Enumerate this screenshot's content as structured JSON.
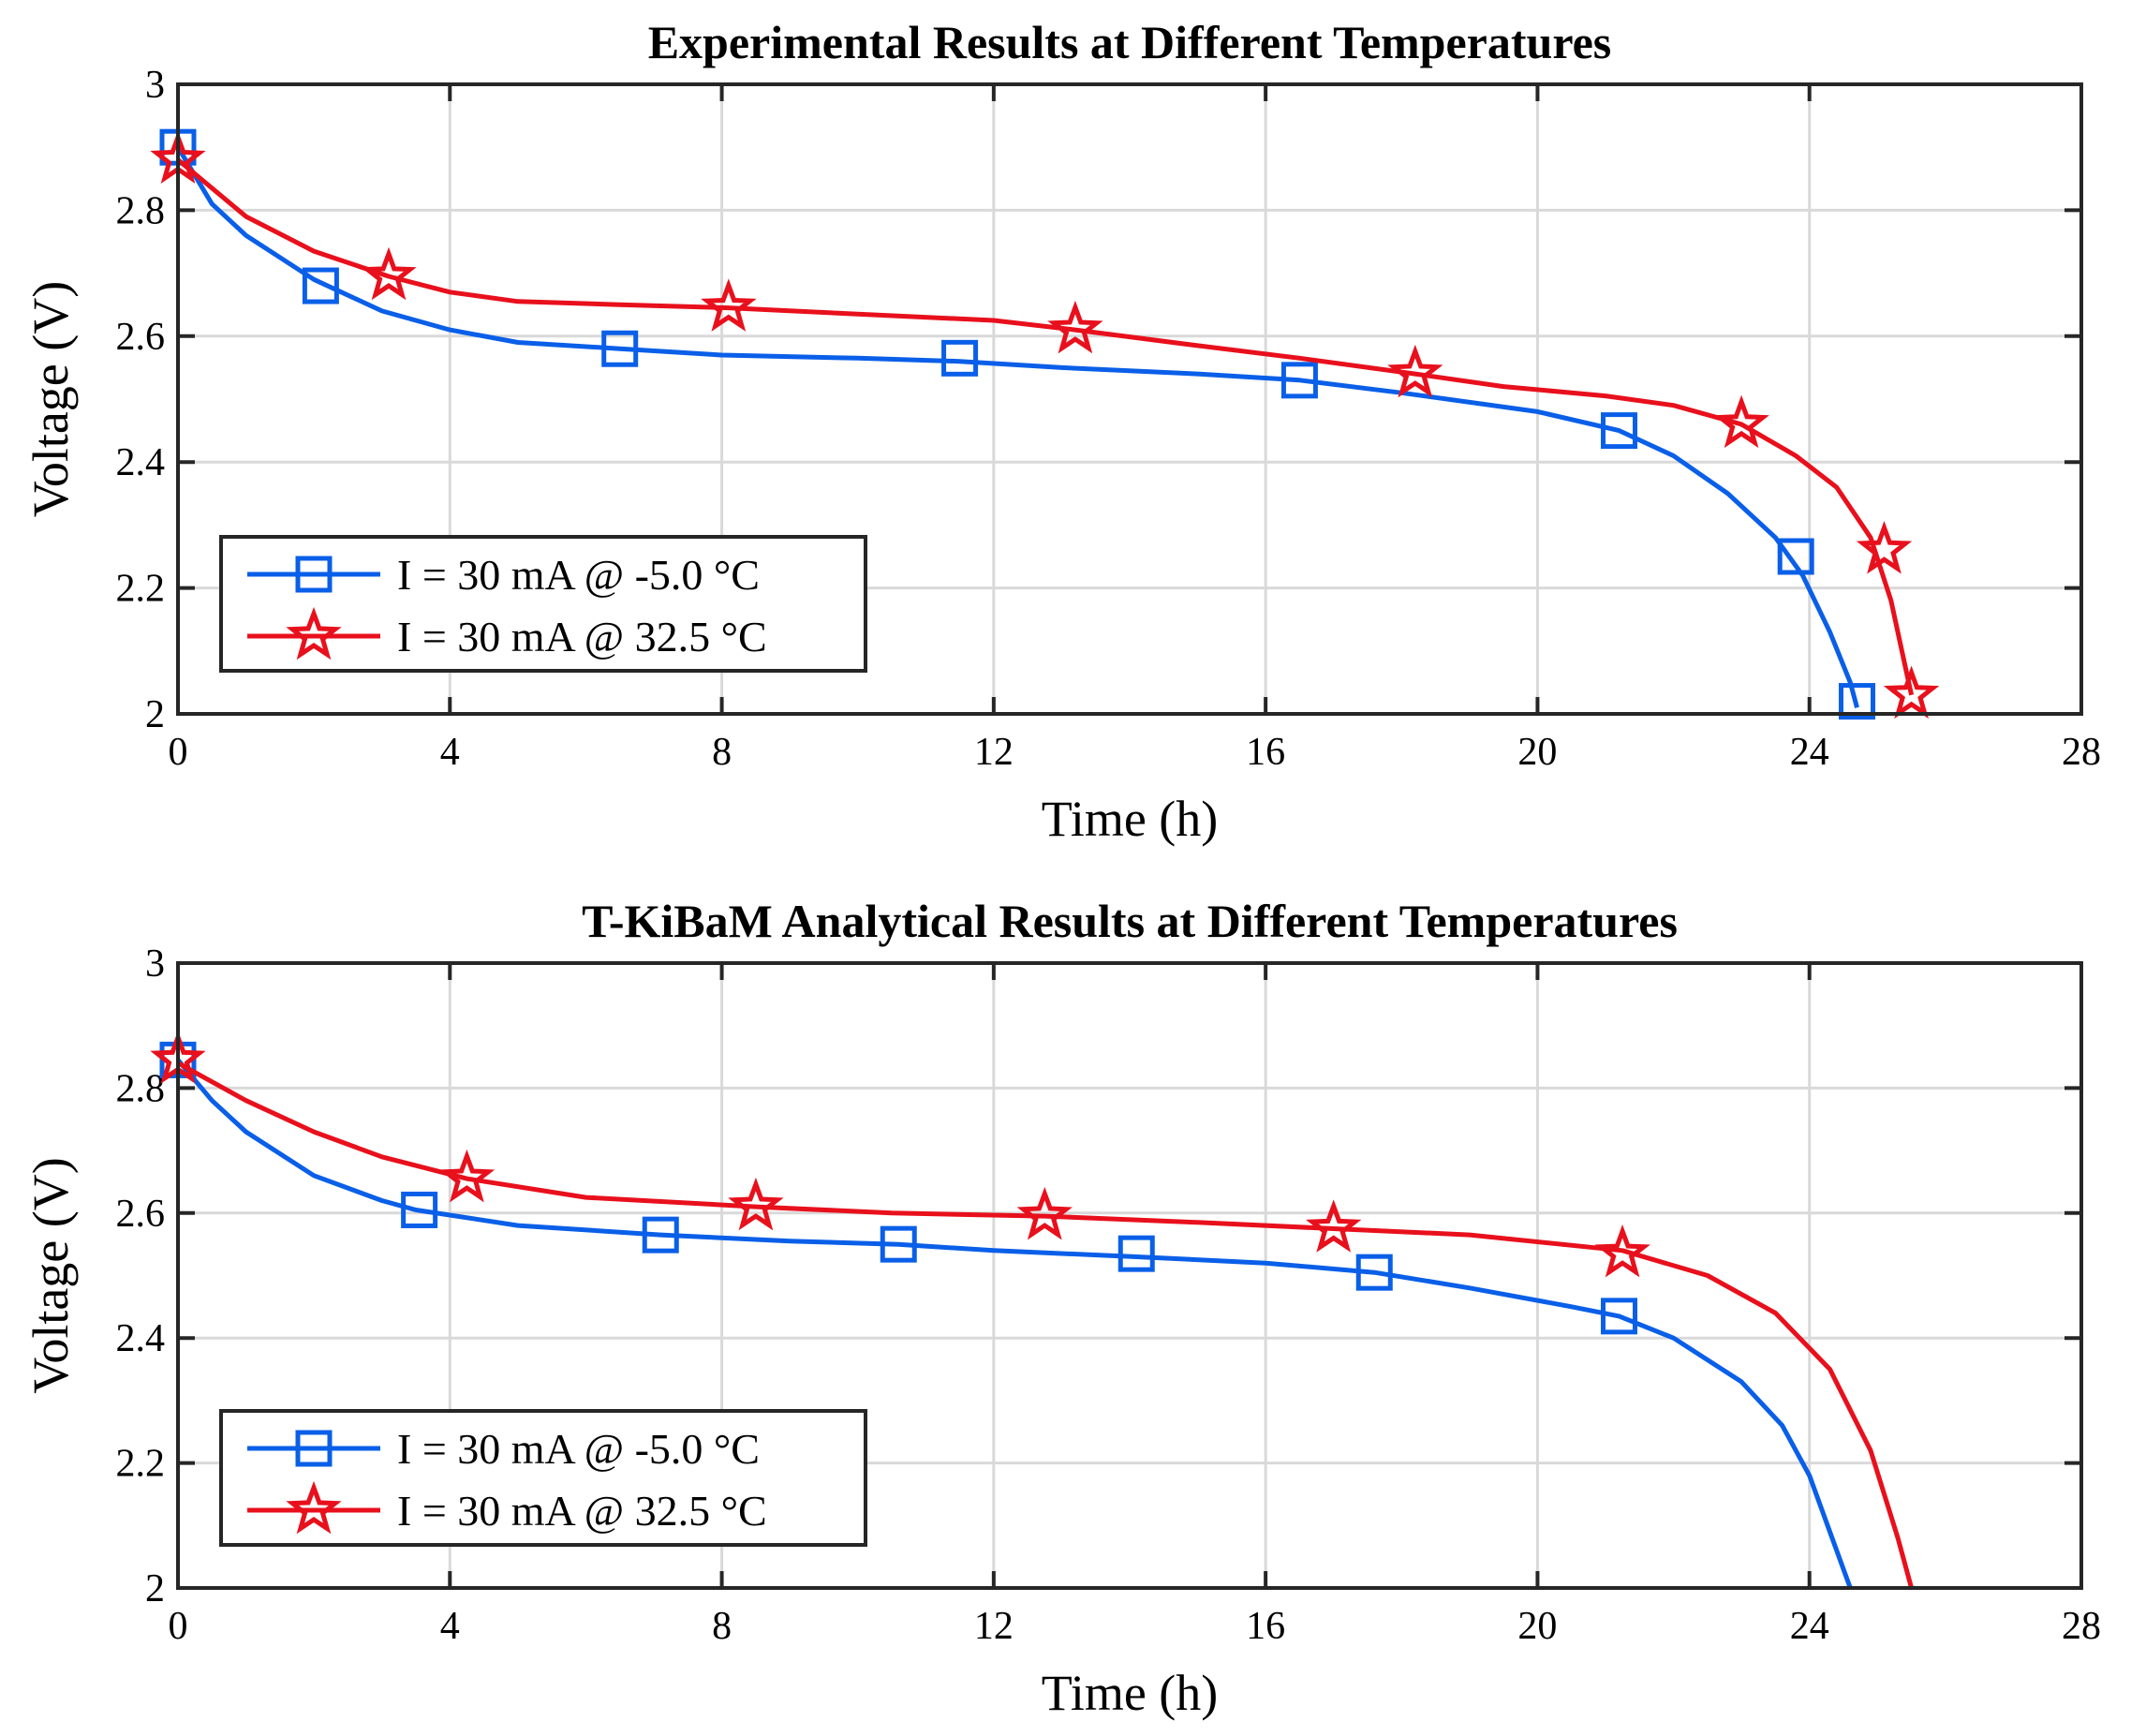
{
  "chart_data": [
    {
      "type": "line",
      "title": "Experimental Results at Different Temperatures",
      "xlabel": "Time (h)",
      "ylabel": "Voltage (V)",
      "xlim": [
        0,
        28
      ],
      "ylim": [
        2,
        3
      ],
      "xticks": [
        "0",
        "4",
        "8",
        "12",
        "16",
        "20",
        "24",
        "28"
      ],
      "yticks": [
        "2",
        "2.2",
        "2.4",
        "2.6",
        "2.8",
        "3"
      ],
      "grid": true,
      "legend_position": "lower-left",
      "series": [
        {
          "name": "I = 30 mA @ -5.0 °C",
          "color": "#0A5FE8",
          "marker": "square",
          "x": [
            0,
            0.5,
            1,
            2,
            3,
            4,
            5,
            6.5,
            8,
            10,
            11.5,
            13,
            15,
            16.5,
            18,
            20,
            21.2,
            22,
            22.8,
            23.5,
            23.9,
            24.3,
            24.6,
            24.7
          ],
          "y": [
            2.9,
            2.81,
            2.76,
            2.69,
            2.64,
            2.61,
            2.59,
            2.58,
            2.57,
            2.565,
            2.56,
            2.55,
            2.54,
            2.53,
            2.51,
            2.48,
            2.45,
            2.41,
            2.35,
            2.28,
            2.22,
            2.13,
            2.05,
            2.01
          ],
          "marker_x": [
            0,
            2.1,
            6.5,
            11.5,
            16.5,
            21.2,
            23.8,
            24.7
          ],
          "marker_y": [
            2.9,
            2.68,
            2.58,
            2.565,
            2.53,
            2.45,
            2.25,
            2.02
          ]
        },
        {
          "name": "I = 30 mA @ 32.5 °C",
          "color": "#E8101C",
          "marker": "star",
          "x": [
            0,
            1,
            2,
            3.1,
            4,
            5,
            6.5,
            8.1,
            10,
            12,
            13.2,
            15,
            16.5,
            18.2,
            19.5,
            21,
            22,
            23,
            23.8,
            24.4,
            24.9,
            25.2,
            25.4,
            25.5
          ],
          "y": [
            2.88,
            2.79,
            2.735,
            2.695,
            2.67,
            2.655,
            2.65,
            2.645,
            2.635,
            2.625,
            2.61,
            2.585,
            2.565,
            2.54,
            2.52,
            2.505,
            2.49,
            2.46,
            2.41,
            2.36,
            2.28,
            2.18,
            2.08,
            2.03
          ],
          "marker_x": [
            0,
            3.1,
            8.1,
            13.2,
            18.2,
            23,
            25.1,
            25.5
          ],
          "marker_y": [
            2.88,
            2.695,
            2.645,
            2.61,
            2.54,
            2.46,
            2.26,
            2.03
          ]
        }
      ]
    },
    {
      "type": "line",
      "title": "T-KiBaM Analytical Results at Different Temperatures",
      "xlabel": "Time (h)",
      "ylabel": "Voltage (V)",
      "xlim": [
        0,
        28
      ],
      "ylim": [
        2,
        3
      ],
      "xticks": [
        "0",
        "4",
        "8",
        "12",
        "16",
        "20",
        "24",
        "28"
      ],
      "yticks": [
        "2",
        "2.2",
        "2.4",
        "2.6",
        "2.8",
        "3"
      ],
      "grid": true,
      "legend_position": "lower-left",
      "series": [
        {
          "name": "I = 30 mA @ -5.0 °C",
          "color": "#0A5FE8",
          "marker": "square",
          "x": [
            0,
            0.5,
            1,
            2,
            3,
            3.5,
            5,
            7.1,
            9,
            10.6,
            12,
            14.1,
            16,
            17.6,
            19,
            20.5,
            21.2,
            22,
            23,
            23.6,
            24,
            24.3,
            24.6
          ],
          "y": [
            2.845,
            2.78,
            2.73,
            2.66,
            2.62,
            2.605,
            2.58,
            2.565,
            2.555,
            2.55,
            2.54,
            2.53,
            2.52,
            2.505,
            2.48,
            2.45,
            2.435,
            2.4,
            2.33,
            2.26,
            2.18,
            2.09,
            2.0
          ],
          "marker_x": [
            0,
            3.55,
            7.1,
            10.6,
            14.1,
            17.6,
            21.2
          ],
          "marker_y": [
            2.845,
            2.605,
            2.565,
            2.55,
            2.535,
            2.505,
            2.435
          ]
        },
        {
          "name": "I = 30 mA @ 32.5 °C",
          "color": "#E8101C",
          "marker": "star",
          "x": [
            0,
            1,
            2,
            3,
            4.25,
            6,
            8.5,
            10.5,
            12.75,
            15,
            17,
            19,
            21.25,
            22.5,
            23.5,
            24.3,
            24.9,
            25.3,
            25.5
          ],
          "y": [
            2.84,
            2.78,
            2.73,
            2.69,
            2.655,
            2.625,
            2.61,
            2.6,
            2.595,
            2.585,
            2.575,
            2.565,
            2.54,
            2.5,
            2.44,
            2.35,
            2.22,
            2.08,
            2.0
          ],
          "marker_x": [
            0,
            4.25,
            8.5,
            12.75,
            17,
            21.25
          ],
          "marker_y": [
            2.845,
            2.655,
            2.61,
            2.595,
            2.575,
            2.535
          ]
        }
      ]
    }
  ]
}
